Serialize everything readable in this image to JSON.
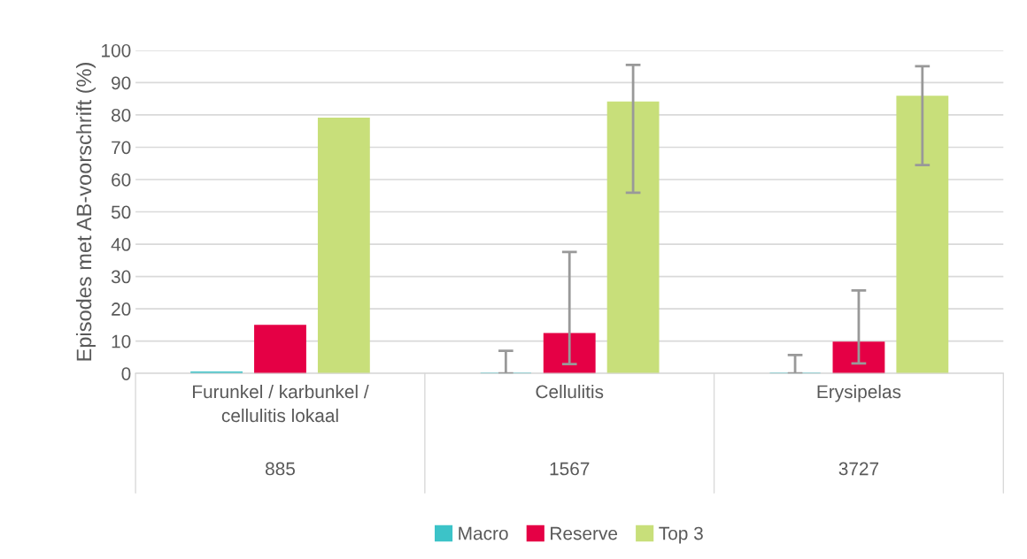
{
  "chart_data": {
    "type": "bar",
    "ylabel": "Episodes met AB-voorschrift (%)",
    "categories": [
      "Furunkel / karbunkel / cellulitis lokaal",
      "Cellulitis",
      "Erysipelas"
    ],
    "series": [
      {
        "name": "Macro",
        "color": "#3cc3c8",
        "values": [
          0.4,
          0,
          0
        ],
        "errors": [
          null,
          [
            0,
            7.0
          ],
          [
            0,
            5.7
          ]
        ]
      },
      {
        "name": "Reserve",
        "color": "#e50045",
        "values": [
          14.8,
          12.3,
          9.6
        ],
        "errors": [
          null,
          [
            2.9,
            37.6
          ],
          [
            3.1,
            25.7
          ]
        ]
      },
      {
        "name": "Top 3",
        "color": "#c8df7a",
        "values": [
          78.9,
          83.9,
          85.7
        ],
        "errors": [
          null,
          [
            55.9,
            95.5
          ],
          [
            64.5,
            95.1
          ]
        ]
      }
    ],
    "annotations": [
      "885",
      "1567",
      "3727"
    ],
    "ylim": [
      0,
      100
    ],
    "yticks": [
      0,
      10,
      20,
      30,
      40,
      50,
      60,
      70,
      80,
      90,
      100
    ],
    "grid": "y",
    "legend": "bottom"
  }
}
